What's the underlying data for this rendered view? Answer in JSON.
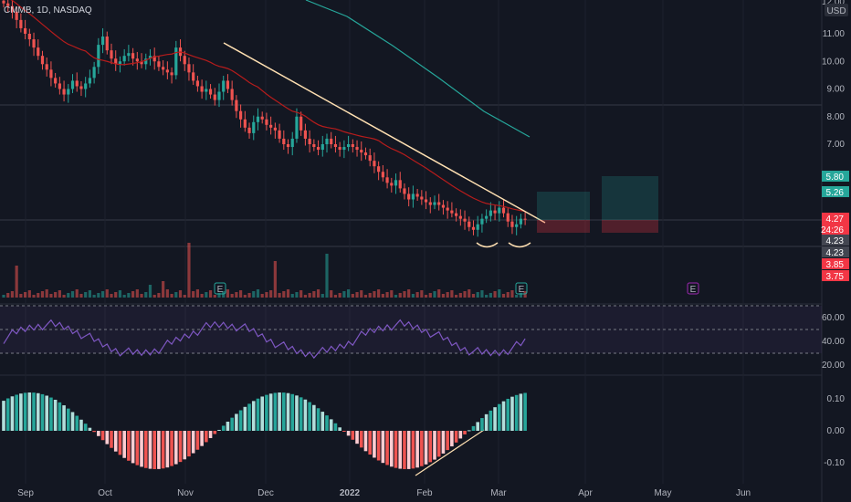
{
  "chart_data": {
    "type": "candlestick",
    "title": "CMMB, 1D, NASDAQ",
    "currency": "USD",
    "month_labels": [
      "Sep",
      "Oct",
      "Nov",
      "Dec",
      "2022",
      "Feb",
      "Mar",
      "Apr",
      "May",
      "Jun"
    ],
    "price_axis": {
      "ticks": [
        "11.00",
        "10.00",
        "9.00",
        "8.00",
        "7.00"
      ],
      "top_label": "12.00",
      "min": 3.5,
      "max": 12.0
    },
    "price_tags": [
      {
        "label": "5.80",
        "color": "#26a69a"
      },
      {
        "label": "5.26",
        "color": "#26a69a"
      },
      {
        "label": "4.27",
        "color": "#f23645"
      },
      {
        "label": "24:26",
        "color": "#f23645"
      },
      {
        "label": "4.23",
        "color": "#434651"
      },
      {
        "label": "4.23",
        "color": "#434651"
      },
      {
        "label": "3.85",
        "color": "#f23645"
      },
      {
        "label": "3.75",
        "color": "#f23645"
      }
    ],
    "earnings_markers": [
      "E",
      "E",
      "E"
    ],
    "rsi": {
      "ticks": [
        "60.00",
        "40.00",
        "20.00"
      ],
      "upper": 70,
      "lower": 30
    },
    "oscillator": {
      "ticks": [
        "0.10",
        "0.00",
        "-0.10"
      ]
    },
    "series": [
      {
        "name": "price",
        "ohlc_close": [
          12.1,
          12.0,
          11.8,
          11.5,
          11.2,
          11.0,
          10.8,
          10.5,
          10.2,
          9.9,
          9.7,
          9.4,
          9.2,
          9.0,
          8.8,
          9.0,
          9.3,
          9.1,
          9.0,
          9.2,
          9.4,
          9.8,
          10.6,
          10.9,
          10.4,
          10.1,
          9.9,
          10.0,
          10.2,
          10.3,
          10.1,
          10.0,
          9.9,
          10.1,
          10.2,
          10.0,
          9.8,
          9.7,
          9.6,
          9.5,
          10.5,
          10.2,
          9.9,
          9.6,
          9.3,
          9.1,
          8.9,
          9.0,
          8.8,
          8.6,
          8.9,
          9.3,
          9.0,
          8.6,
          8.2,
          7.9,
          7.6,
          7.4,
          7.8,
          8.0,
          7.9,
          7.7,
          7.6,
          7.5,
          7.2,
          7.0,
          6.9,
          7.2,
          8.0,
          7.5,
          7.2,
          7.0,
          6.9,
          6.8,
          7.0,
          7.2,
          7.0,
          6.9,
          6.8,
          6.9,
          7.0,
          6.9,
          6.8,
          6.7,
          6.6,
          6.4,
          6.2,
          6.0,
          5.8,
          5.6,
          5.5,
          5.7,
          5.4,
          5.2,
          5.0,
          5.2,
          5.1,
          5.0,
          4.9,
          4.8,
          4.9,
          4.8,
          4.7,
          4.6,
          4.5,
          4.4,
          4.3,
          4.2,
          4.0,
          3.9,
          4.1,
          4.3,
          4.4,
          4.6,
          4.5,
          4.7,
          4.5,
          4.2,
          4.0,
          4.1,
          4.3,
          4.27
        ]
      }
    ]
  }
}
